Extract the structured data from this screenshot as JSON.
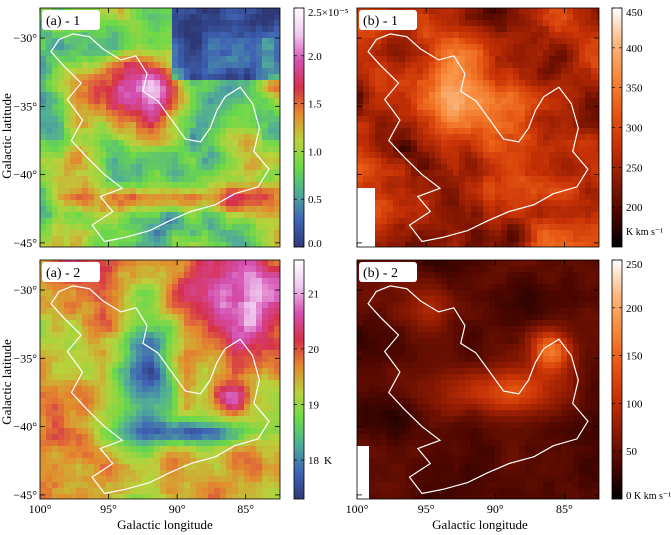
{
  "figure": {
    "xlabel": "Galactic longitude",
    "ylabel": "Galactic latitude",
    "x_ticks": [
      "100°",
      "95°",
      "90°",
      "85°"
    ],
    "y_ticks": [
      "−30°",
      "−35°",
      "−40°",
      "−45°"
    ]
  },
  "chart_data": [
    {
      "type": "heatmap",
      "panel": "(a) - 1",
      "xlim": [
        100,
        82.5
      ],
      "ylim": [
        -45.3,
        -27.8
      ],
      "colormap": [
        "#2e3a78",
        "#3f63b5",
        "#4faa9a",
        "#6ad94a",
        "#b8d23c",
        "#e38a2e",
        "#d6304a",
        "#d44fb0",
        "#f0c8f0",
        "#ffffff"
      ],
      "colorbar": {
        "ticks": [
          0.0,
          0.5,
          1.0,
          1.5,
          2.0,
          2.5
        ],
        "tick_labels": [
          "0.0",
          "0.5",
          "1.0",
          "1.5",
          "2.0",
          "2.5×10⁻⁵"
        ],
        "range": [
          0,
          2.5
        ],
        "unit": ""
      }
    },
    {
      "type": "heatmap",
      "panel": "(b) - 1",
      "xlim": [
        100,
        82.5
      ],
      "ylim": [
        -45.3,
        -27.8
      ],
      "colormap": [
        "#000000",
        "#4a0600",
        "#8e1a02",
        "#c83206",
        "#e85a14",
        "#f78a3a",
        "#fbb882",
        "#ffffff"
      ],
      "colorbar": {
        "ticks": [
          200,
          250,
          300,
          350,
          400,
          450
        ],
        "tick_labels": [
          "200",
          "250",
          "300",
          "350",
          "400",
          "450"
        ],
        "range": [
          150,
          450
        ],
        "unit": "K km s⁻¹"
      }
    },
    {
      "type": "heatmap",
      "panel": "(a) - 2",
      "xlim": [
        100,
        82.5
      ],
      "ylim": [
        -45.3,
        -27.8
      ],
      "colormap": [
        "#2e3a78",
        "#3f63b5",
        "#4faa9a",
        "#6ad94a",
        "#b8d23c",
        "#e38a2e",
        "#d6304a",
        "#d44fb0",
        "#f0c8f0",
        "#ffffff"
      ],
      "colorbar": {
        "ticks": [
          18,
          19,
          20,
          21
        ],
        "tick_labels": [
          "18",
          "19",
          "20",
          "21"
        ],
        "range": [
          17.3,
          21.6
        ],
        "unit": "K"
      }
    },
    {
      "type": "heatmap",
      "panel": "(b) - 2",
      "xlim": [
        100,
        82.5
      ],
      "ylim": [
        -45.3,
        -27.8
      ],
      "colormap": [
        "#000000",
        "#4a0600",
        "#8e1a02",
        "#c83206",
        "#e85a14",
        "#f78a3a",
        "#fbb882",
        "#ffffff"
      ],
      "colorbar": {
        "ticks": [
          0,
          50,
          100,
          150,
          200,
          250
        ],
        "tick_labels": [
          "0",
          "50",
          "100",
          "150",
          "200",
          "250"
        ],
        "range": [
          0,
          250
        ],
        "unit": "K km s⁻¹"
      }
    }
  ],
  "contour_outline_lb": [
    [
      98.6,
      -30.1
    ],
    [
      97.6,
      -29.7
    ],
    [
      96.4,
      -29.9
    ],
    [
      95.4,
      -30.8
    ],
    [
      94.1,
      -31.6
    ],
    [
      93.0,
      -31.3
    ],
    [
      92.2,
      -32.6
    ],
    [
      92.5,
      -33.9
    ],
    [
      91.4,
      -34.6
    ],
    [
      90.4,
      -36.0
    ],
    [
      89.4,
      -37.4
    ],
    [
      88.3,
      -37.6
    ],
    [
      87.6,
      -36.6
    ],
    [
      87.1,
      -35.3
    ],
    [
      86.5,
      -34.3
    ],
    [
      85.4,
      -33.6
    ],
    [
      84.5,
      -34.8
    ],
    [
      84.0,
      -36.6
    ],
    [
      84.4,
      -38.3
    ],
    [
      83.3,
      -39.6
    ],
    [
      84.1,
      -40.9
    ],
    [
      85.8,
      -41.4
    ],
    [
      87.2,
      -42.2
    ],
    [
      89.0,
      -42.7
    ],
    [
      90.6,
      -43.4
    ],
    [
      92.0,
      -44.1
    ],
    [
      93.8,
      -44.6
    ],
    [
      95.3,
      -44.9
    ],
    [
      96.2,
      -43.7
    ],
    [
      94.7,
      -42.7
    ],
    [
      95.6,
      -41.6
    ],
    [
      94.0,
      -41.0
    ],
    [
      95.3,
      -40.0
    ],
    [
      96.6,
      -38.7
    ],
    [
      97.7,
      -37.5
    ],
    [
      96.9,
      -36.0
    ],
    [
      98.0,
      -34.5
    ],
    [
      97.0,
      -33.3
    ],
    [
      98.3,
      -32.0
    ],
    [
      99.2,
      -31.0
    ]
  ]
}
